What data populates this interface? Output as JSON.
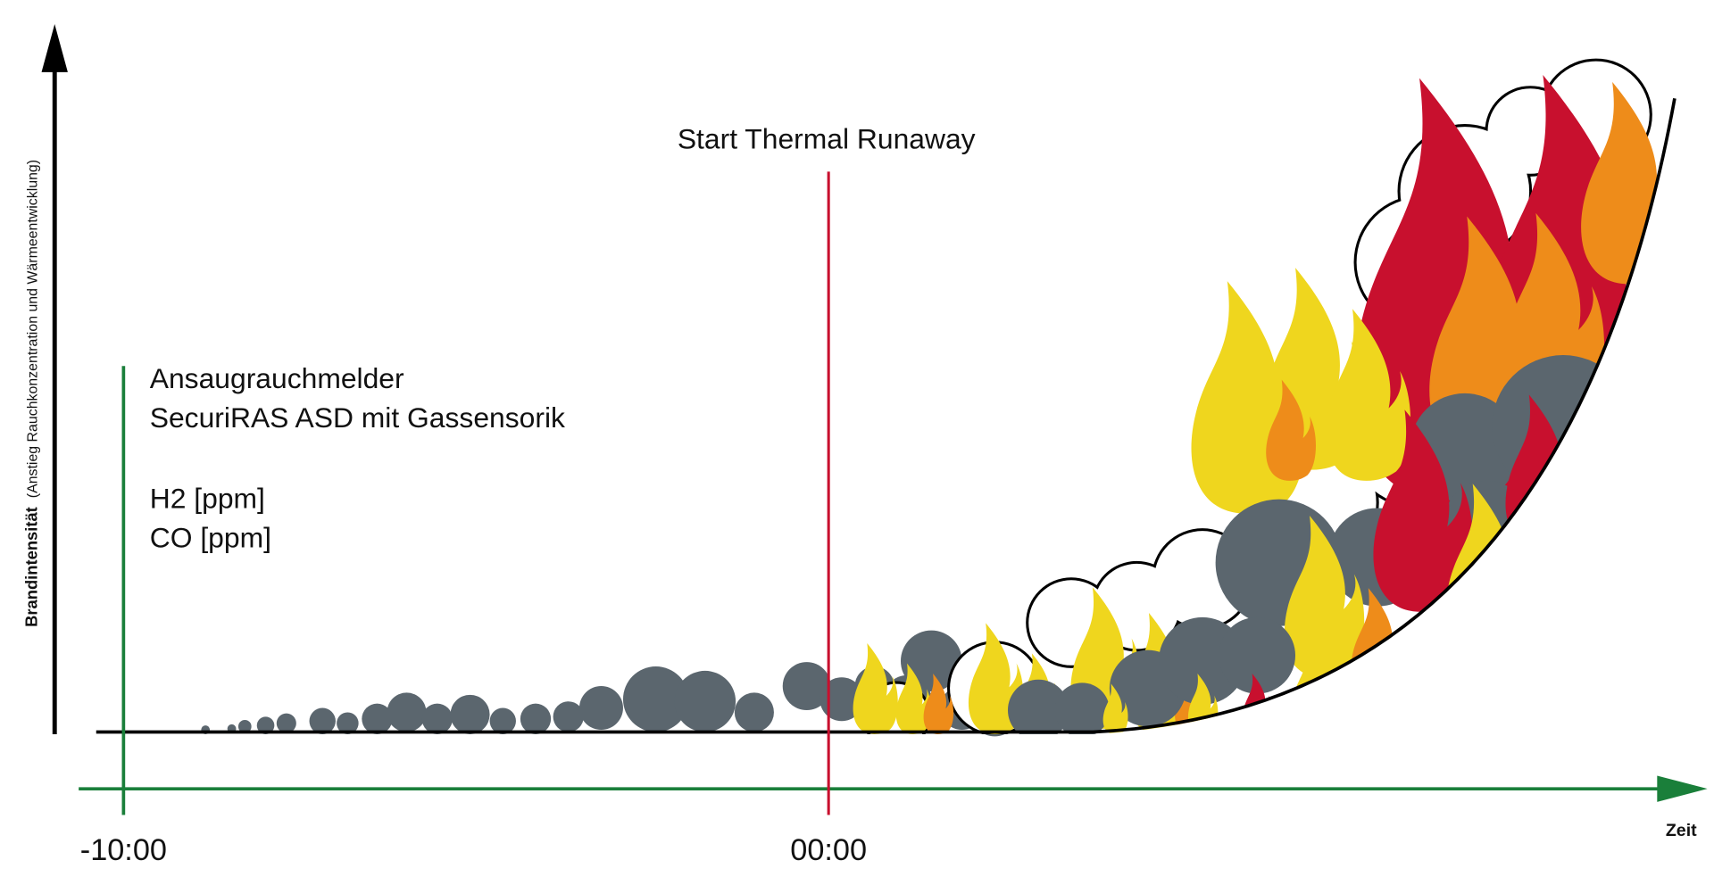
{
  "y_axis": {
    "title": "Brandintensität",
    "subtitle": "(Anstieg Rauchkonzentration und Wärmeentwicklung)"
  },
  "x_axis": {
    "label": "Zeit",
    "ticks": [
      "-10:00",
      "00:00"
    ]
  },
  "event": {
    "label": "Start Thermal Runaway"
  },
  "detector": {
    "lines": [
      "Ansaugrauchmelder",
      "SecuriRAS ASD mit Gassensorik"
    ],
    "measurements": [
      "H2 [ppm]",
      "CO [ppm]"
    ]
  }
}
